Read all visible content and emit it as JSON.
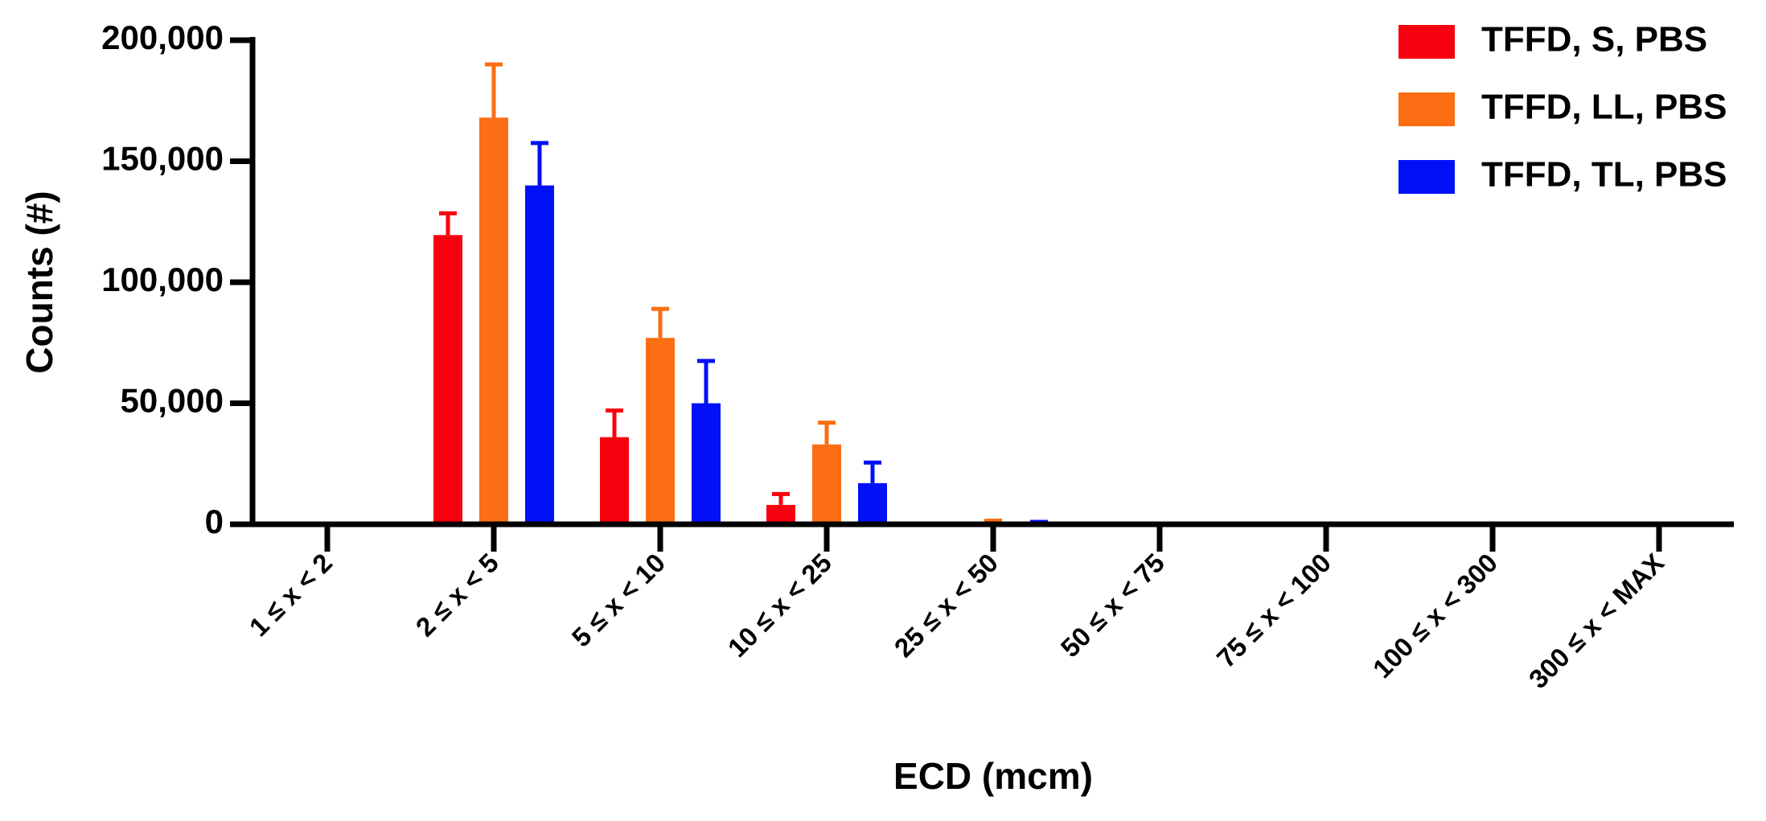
{
  "chart_data": {
    "type": "bar",
    "x_label": "ECD (mcm)",
    "y_label": "Counts (#)",
    "categories": [
      "1 ≤ x < 2",
      "2 ≤ x < 5",
      "5 ≤ x < 10",
      "10 ≤ x < 25",
      "25 ≤ x < 50",
      "50 ≤ x < 75",
      "75 ≤ x < 100",
      "100 ≤ x < 300",
      "300 ≤ x < MAX"
    ],
    "series": [
      {
        "name": "TFFD, S, PBS",
        "color": "#f7000f",
        "values": [
          0,
          119500,
          36000,
          8000,
          200,
          0,
          0,
          0,
          0
        ],
        "errors": [
          0,
          9000,
          11000,
          4500,
          0,
          0,
          0,
          0,
          0
        ]
      },
      {
        "name": "TFFD, LL, PBS",
        "color": "#fb6e13",
        "values": [
          0,
          168000,
          77000,
          33000,
          1000,
          0,
          0,
          0,
          0
        ],
        "errors": [
          0,
          22000,
          12000,
          9000,
          500,
          0,
          0,
          0,
          0
        ]
      },
      {
        "name": "TFFD, TL, PBS",
        "color": "#0010f7",
        "values": [
          0,
          140000,
          50000,
          17000,
          500,
          0,
          0,
          0,
          0
        ],
        "errors": [
          0,
          17500,
          17500,
          8500,
          500,
          0,
          0,
          0,
          0
        ]
      }
    ],
    "ylim": [
      0,
      200000
    ],
    "yticks": [
      0,
      {
        "value": 50000,
        "label": "50,000"
      },
      {
        "value": 100000,
        "label": "100,000"
      },
      {
        "value": 150000,
        "label": "150,000"
      },
      {
        "value": 200000,
        "label": "200,000"
      }
    ],
    "legend": "top-right"
  }
}
